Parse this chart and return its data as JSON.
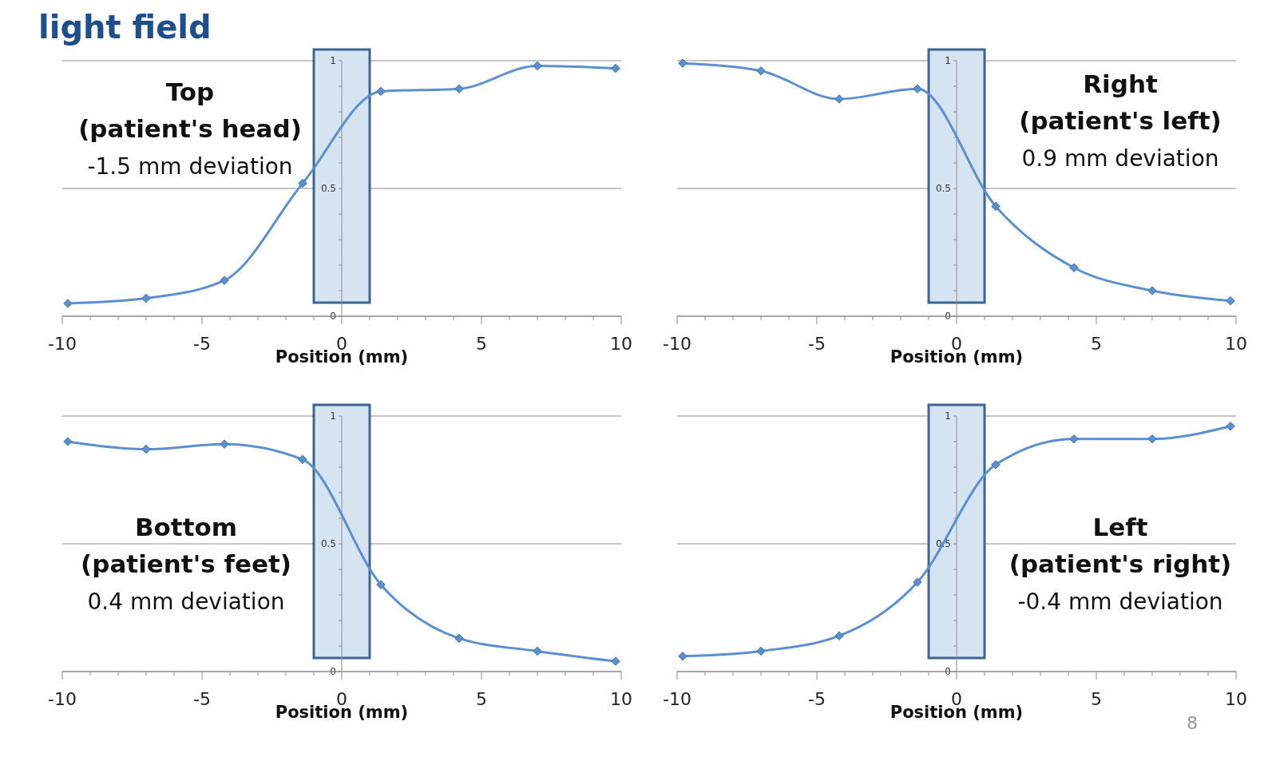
{
  "chart_data": [
    {
      "type": "line",
      "title": "light field",
      "xlabel": "Position (mm)",
      "x": [
        -9.8,
        -7,
        -4.2,
        -1.4,
        1.4,
        4.2,
        7,
        9.8
      ],
      "series": [
        {
          "color": "#5b8fcf",
          "values": [
            0.05,
            0.07,
            0.14,
            0.52,
            0.88,
            0.89,
            0.98,
            0.97
          ]
        }
      ],
      "xlim": [
        -10,
        10
      ],
      "xticks": [
        -10,
        -5,
        0,
        5,
        10
      ],
      "ylim": [
        0,
        1
      ],
      "yticks": [
        0,
        0.5,
        1
      ],
      "grid": "y",
      "marker": "diamond",
      "line_style": "solid",
      "bands": [
        {
          "axis": "x",
          "from": -1,
          "to": 1,
          "color": "#d6e3f1"
        }
      ],
      "annotations": [
        "Top",
        "(patient's head)",
        "-1.5 mm deviation"
      ]
    },
    {
      "type": "line",
      "xlabel": "Position (mm)",
      "x": [
        -9.8,
        -7,
        -4.2,
        -1.4,
        1.4,
        4.2,
        7,
        9.8
      ],
      "series": [
        {
          "color": "#5b8fcf",
          "values": [
            0.99,
            0.96,
            0.85,
            0.89,
            0.43,
            0.19,
            0.1,
            0.06
          ]
        }
      ],
      "xlim": [
        -10,
        10
      ],
      "xticks": [
        -10,
        -5,
        0,
        5,
        10
      ],
      "ylim": [
        0,
        1
      ],
      "yticks": [
        0,
        0.5,
        1
      ],
      "grid": "y",
      "marker": "diamond",
      "line_style": "solid",
      "bands": [
        {
          "axis": "x",
          "from": -1,
          "to": 1,
          "color": "#d6e3f1"
        }
      ],
      "annotations": [
        "Right",
        "(patient's left)",
        "0.9 mm deviation"
      ]
    },
    {
      "type": "line",
      "xlabel": "Position (mm)",
      "x": [
        -9.8,
        -7,
        -4.2,
        -1.4,
        1.4,
        4.2,
        7,
        9.8
      ],
      "series": [
        {
          "color": "#5b8fcf",
          "values": [
            0.9,
            0.87,
            0.89,
            0.83,
            0.34,
            0.13,
            0.08,
            0.04
          ]
        }
      ],
      "xlim": [
        -10,
        10
      ],
      "xticks": [
        -10,
        -5,
        0,
        5,
        10
      ],
      "ylim": [
        0,
        1
      ],
      "yticks": [
        0,
        0.5,
        1
      ],
      "grid": "y",
      "marker": "diamond",
      "line_style": "solid",
      "bands": [
        {
          "axis": "x",
          "from": -1,
          "to": 1,
          "color": "#d6e3f1"
        }
      ],
      "annotations": [
        "Bottom",
        "(patient's feet)",
        "0.4 mm deviation"
      ]
    },
    {
      "type": "line",
      "xlabel": "Position (mm)",
      "x": [
        -9.8,
        -7,
        -4.2,
        -1.4,
        1.4,
        4.2,
        7,
        9.8
      ],
      "series": [
        {
          "color": "#5b8fcf",
          "values": [
            0.06,
            0.08,
            0.14,
            0.35,
            0.81,
            0.91,
            0.91,
            0.96
          ]
        }
      ],
      "xlim": [
        -10,
        10
      ],
      "xticks": [
        -10,
        -5,
        0,
        5,
        10
      ],
      "ylim": [
        0,
        1
      ],
      "yticks": [
        0,
        0.5,
        1
      ],
      "grid": "y",
      "marker": "diamond",
      "line_style": "solid",
      "bands": [
        {
          "axis": "x",
          "from": -1,
          "to": 1,
          "color": "#d6e3f1"
        }
      ],
      "annotations": [
        "Left",
        "(patient's right)",
        "-0.4 mm deviation",
        "8"
      ]
    }
  ]
}
